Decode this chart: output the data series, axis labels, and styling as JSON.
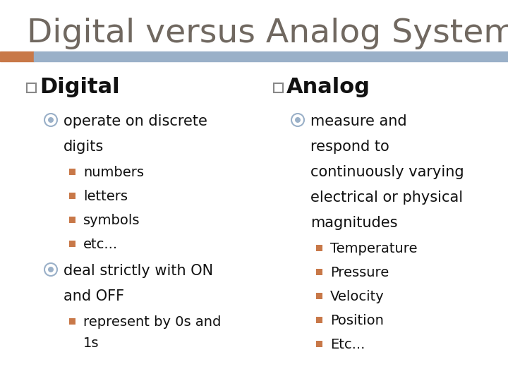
{
  "title": "Digital versus Analog Systems",
  "title_fontsize": 34,
  "title_color": "#706860",
  "title_bar_color": "#9ab0c8",
  "title_accent_color": "#c87848",
  "background_color": "#ffffff",
  "col_header_fontsize": 22,
  "col_header_color": "#111111",
  "bullet_l1_fontsize": 15,
  "bullet_l2_fontsize": 14,
  "text_color": "#111111",
  "square_bullet_color": "#c87848",
  "circle_bullet_color": "#9ab0c8",
  "checkbox_color": "#888888",
  "left_column": {
    "header": "Digital",
    "items": [
      {
        "level": 1,
        "text": "operate on discrete\ndigits"
      },
      {
        "level": 2,
        "text": "numbers"
      },
      {
        "level": 2,
        "text": "letters"
      },
      {
        "level": 2,
        "text": "symbols"
      },
      {
        "level": 2,
        "text": "etc..."
      },
      {
        "level": 1,
        "text": "deal strictly with ON\nand OFF"
      },
      {
        "level": 2,
        "text": "represent by 0s and\n1s"
      }
    ]
  },
  "right_column": {
    "header": "Analog",
    "items": [
      {
        "level": 1,
        "text": "measure and\nrespond to\ncontinuously varying\nelectrical or physical\nmagnitudes"
      },
      {
        "level": 2,
        "text": "Temperature"
      },
      {
        "level": 2,
        "text": "Pressure"
      },
      {
        "level": 2,
        "text": "Velocity"
      },
      {
        "level": 2,
        "text": "Position"
      },
      {
        "level": 2,
        "text": "Etc..."
      }
    ]
  }
}
